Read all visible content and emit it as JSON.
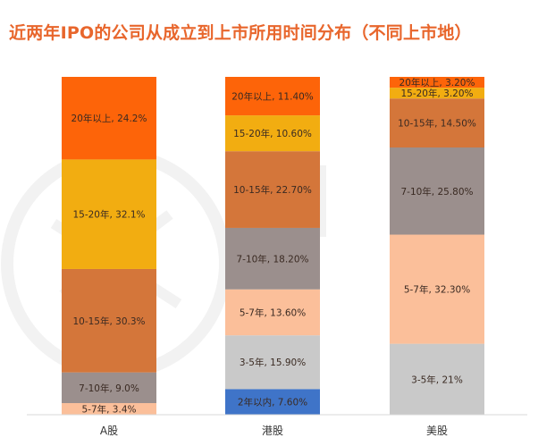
{
  "colors": {
    "title": "#e8662c",
    "axis": "#d9d9d9",
    "watermark": "#f1f1f1",
    "segments": {
      "2年以内": "#3f74c8",
      "3-5年": "#c9c9c9",
      "5-7年": "#fbbf9a",
      "7-10年": "#9b8f8d",
      "10-15年": "#d4763a",
      "15-20年": "#f2ad11",
      "20年以上": "#fd6409"
    }
  },
  "chart_data": {
    "type": "bar",
    "stacked": true,
    "percent_stacked": true,
    "title": "近两年IPO的公司从成立到上市所用时间分布（不同上市地）",
    "categories": [
      "A股",
      "港股",
      "美股"
    ],
    "ylim": [
      0,
      100
    ],
    "grid": false,
    "legend": "none",
    "series_order": [
      "2年以内",
      "3-5年",
      "5-7年",
      "7-10年",
      "10-15年",
      "15-20年",
      "20年以上"
    ],
    "stacks": [
      {
        "category": "A股",
        "segments": [
          {
            "name": "5-7年",
            "value": 3.4,
            "label": "5-7年, 3.4%"
          },
          {
            "name": "7-10年",
            "value": 9.0,
            "label": "7-10年, 9.0%"
          },
          {
            "name": "10-15年",
            "value": 30.3,
            "label": "10-15年, 30.3%"
          },
          {
            "name": "15-20年",
            "value": 32.1,
            "label": "15-20年, 32.1%"
          },
          {
            "name": "20年以上",
            "value": 24.2,
            "label": "20年以上, 24.2%"
          }
        ]
      },
      {
        "category": "港股",
        "segments": [
          {
            "name": "2年以内",
            "value": 7.6,
            "label": "2年以内, 7.60%"
          },
          {
            "name": "3-5年",
            "value": 15.9,
            "label": "3-5年, 15.90%"
          },
          {
            "name": "5-7年",
            "value": 13.6,
            "label": "5-7年, 13.60%"
          },
          {
            "name": "7-10年",
            "value": 18.2,
            "label": "7-10年, 18.20%"
          },
          {
            "name": "10-15年",
            "value": 22.7,
            "label": "10-15年, 22.70%"
          },
          {
            "name": "15-20年",
            "value": 10.6,
            "label": "15-20年, 10.60%"
          },
          {
            "name": "20年以上",
            "value": 11.4,
            "label": "20年以上, 11.40%"
          }
        ]
      },
      {
        "category": "美股",
        "segments": [
          {
            "name": "3-5年",
            "value": 21,
            "label": "3-5年, 21%"
          },
          {
            "name": "5-7年",
            "value": 32.3,
            "label": "5-7年, 32.30%"
          },
          {
            "name": "7-10年",
            "value": 25.8,
            "label": "7-10年, 25.80%"
          },
          {
            "name": "10-15年",
            "value": 14.5,
            "label": "10-15年, 14.50%"
          },
          {
            "name": "15-20年",
            "value": 3.2,
            "label": "15-20年, 3.20%"
          },
          {
            "name": "20年以上",
            "value": 3.2,
            "label": "20年以上, 3.20%"
          }
        ]
      }
    ]
  }
}
